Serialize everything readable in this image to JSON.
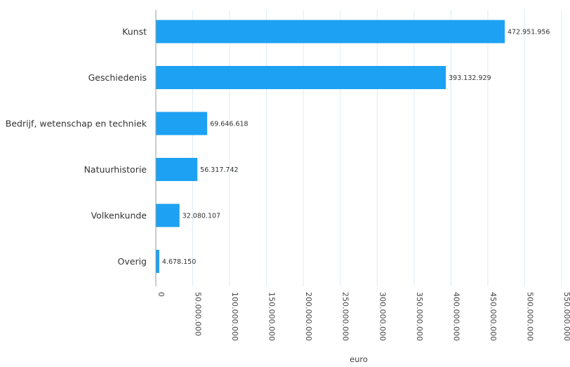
{
  "chart_data": {
    "type": "bar",
    "orientation": "horizontal",
    "title": "",
    "categories": [
      "Kunst",
      "Geschiedenis",
      "Bedrijf, wetenschap en techniek",
      "Natuurhistorie",
      "Volkenkunde",
      "Overig"
    ],
    "values": [
      472951956,
      393132929,
      69646618,
      56317742,
      32080107,
      4678150
    ],
    "value_labels": [
      "472.951.956",
      "393.132.929",
      "69.646.618",
      "56.317.742",
      "32.080.107",
      "4.678.150"
    ],
    "xlabel": "euro",
    "ylabel": "",
    "xlim": [
      0,
      550000000
    ],
    "x_ticks": [
      0,
      50000000,
      100000000,
      150000000,
      200000000,
      250000000,
      300000000,
      350000000,
      400000000,
      450000000,
      500000000,
      550000000
    ],
    "x_tick_labels": [
      "0",
      "50.000.000",
      "100.000.000",
      "150.000.000",
      "200.000.000",
      "250.000.000",
      "300.000.000",
      "350.000.000",
      "400.000.000",
      "450.000.000",
      "500.000.000",
      "550.000.000"
    ],
    "grid": true,
    "legend": "none",
    "bar_color": "#1da1f2",
    "grid_color": "#dcecf5"
  }
}
